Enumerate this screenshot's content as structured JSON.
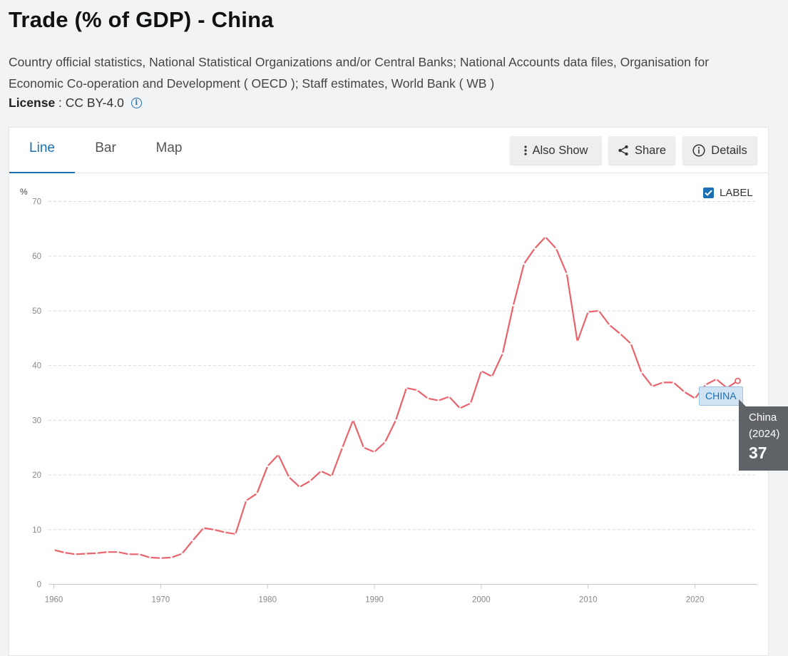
{
  "page": {
    "title": "Trade (% of GDP) - China",
    "source": "Country official statistics, National Statistical Organizations and/or Central Banks; National Accounts data files, Organisation for Economic Co-operation and Development ( OECD ); Staff estimates, World Bank ( WB )",
    "license_label": "License",
    "license_sep": " : ",
    "license_value": "CC BY-4.0"
  },
  "tabs": [
    {
      "label": "Line",
      "active": true
    },
    {
      "label": "Bar",
      "active": false
    },
    {
      "label": "Map",
      "active": false
    }
  ],
  "toolbar": {
    "also_show": "Also Show",
    "share": "Share",
    "details": "Details"
  },
  "label_toggle": {
    "label": "LABEL",
    "checked": true
  },
  "series_label": "CHINA",
  "tooltip": {
    "name": "China",
    "year": "(2024)",
    "value": "37"
  },
  "colors": {
    "accent": "#1a6fb5",
    "line": "#e8636c",
    "tooltip_bg": "#5f6368"
  },
  "chart_data": {
    "type": "line",
    "ylabel": "%",
    "ylim": [
      0,
      70
    ],
    "xlim": [
      1960,
      2025
    ],
    "y_ticks": [
      0,
      10,
      20,
      30,
      40,
      50,
      60,
      70
    ],
    "x_ticks": [
      1960,
      1970,
      1980,
      1990,
      2000,
      2010,
      2020
    ],
    "grid": true,
    "series": [
      {
        "name": "China",
        "x": [
          1960,
          1961,
          1962,
          1963,
          1964,
          1965,
          1966,
          1967,
          1968,
          1969,
          1970,
          1971,
          1972,
          1973,
          1974,
          1975,
          1976,
          1977,
          1978,
          1979,
          1980,
          1981,
          1982,
          1983,
          1984,
          1985,
          1986,
          1987,
          1988,
          1989,
          1990,
          1991,
          1992,
          1993,
          1994,
          1995,
          1996,
          1997,
          1998,
          1999,
          2000,
          2001,
          2002,
          2003,
          2004,
          2005,
          2006,
          2007,
          2008,
          2009,
          2010,
          2011,
          2012,
          2013,
          2014,
          2015,
          2016,
          2017,
          2018,
          2019,
          2020,
          2021,
          2022,
          2023,
          2024
        ],
        "values": [
          6.3,
          5.8,
          5.5,
          5.6,
          5.7,
          5.9,
          5.9,
          5.5,
          5.5,
          4.9,
          4.8,
          4.9,
          5.6,
          8.0,
          10.3,
          10.0,
          9.5,
          9.2,
          15.3,
          16.6,
          21.6,
          23.7,
          19.6,
          17.8,
          18.9,
          20.7,
          19.8,
          25.0,
          30.0,
          25.0,
          24.2,
          26.0,
          30.0,
          35.9,
          35.5,
          34.0,
          33.6,
          34.3,
          32.2,
          33.1,
          39.0,
          38.0,
          42.2,
          51.0,
          58.6,
          61.4,
          63.5,
          61.4,
          56.8,
          44.4,
          49.8,
          50.0,
          47.4,
          45.8,
          44.0,
          38.7,
          36.2,
          36.9,
          36.9,
          35.2,
          34.0,
          36.5,
          37.5,
          35.9,
          37.2
        ]
      }
    ]
  }
}
